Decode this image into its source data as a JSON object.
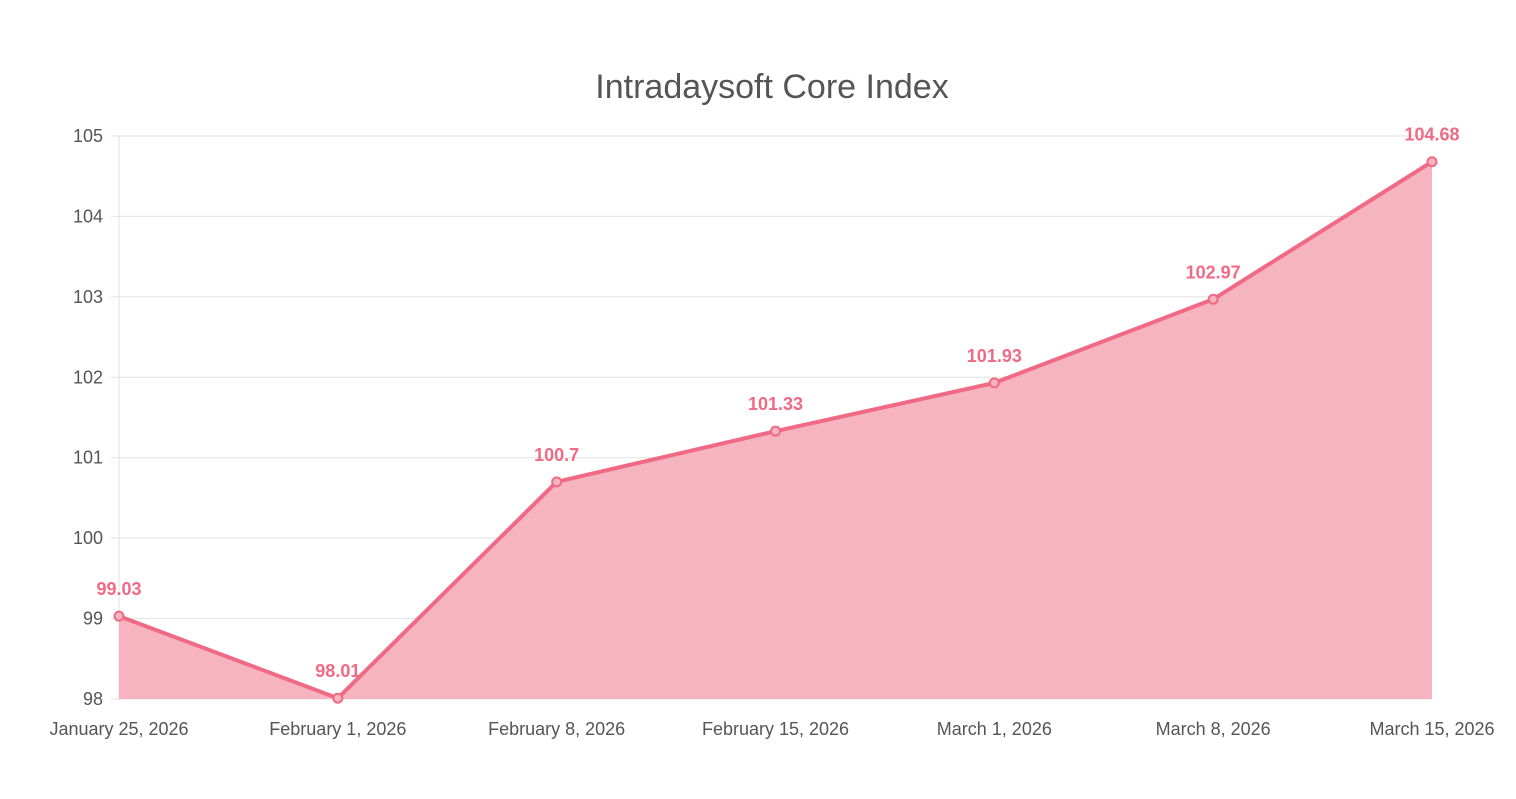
{
  "chart_data": {
    "type": "area",
    "title": "Intradaysoft Core Index",
    "categories": [
      "January 25, 2026",
      "February 1, 2026",
      "February 8, 2026",
      "February 15, 2026",
      "March 1, 2026",
      "March 8, 2026",
      "March 15, 2026"
    ],
    "series": [
      {
        "values": [
          99.03,
          98.01,
          100.7,
          101.33,
          101.93,
          102.97,
          104.68
        ]
      }
    ],
    "data_labels": [
      "99.03",
      "98.01",
      "100.7",
      "101.33",
      "101.93",
      "102.97",
      "104.68"
    ],
    "ylim": [
      98,
      105
    ],
    "yticks": [
      98,
      99,
      100,
      101,
      102,
      103,
      104,
      105
    ],
    "grid": true,
    "legend": "none",
    "colors": {
      "line": "#f06a85",
      "fill": "#f6b3c0",
      "grid": "#e2e2e2",
      "text": "#555555"
    }
  }
}
